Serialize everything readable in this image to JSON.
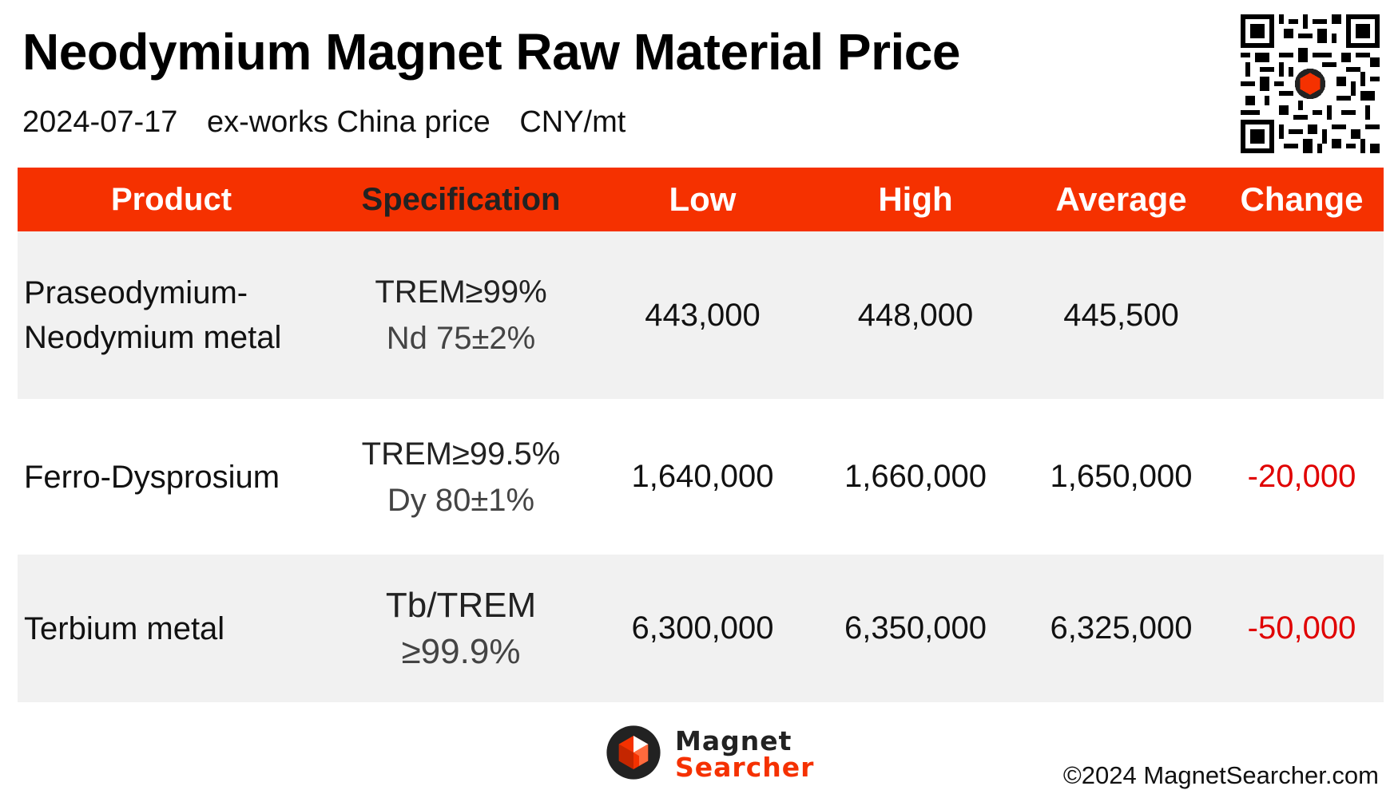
{
  "header": {
    "title": "Neodymium Magnet Raw Material Price",
    "date": "2024-07-17",
    "basis": "ex-works China price",
    "unit": "CNY/mt"
  },
  "table": {
    "columns": [
      "Product",
      "Specification",
      "Low",
      "High",
      "Average",
      "Change"
    ],
    "rows": [
      {
        "product": [
          "Praseodymium-",
          "Neodymium metal"
        ],
        "spec": [
          "TREM≥99%",
          "Nd 75±2%"
        ],
        "low": "443,000",
        "high": "448,000",
        "average": "445,500",
        "change": ""
      },
      {
        "product": [
          "Ferro-Dysprosium"
        ],
        "spec": [
          "TREM≥99.5%",
          "Dy 80±1%"
        ],
        "low": "1,640,000",
        "high": "1,660,000",
        "average": "1,650,000",
        "change": "-20,000"
      },
      {
        "product": [
          "Terbium metal"
        ],
        "spec": [
          "Tb/TREM",
          "≥99.9%"
        ],
        "low": "6,300,000",
        "high": "6,350,000",
        "average": "6,325,000",
        "change": "-50,000"
      }
    ]
  },
  "footer": {
    "logo_line1": "Magnet",
    "logo_line2": "Searcher",
    "copyright": "©2024 MagnetSearcher.com"
  },
  "colors": {
    "accent": "#f53100",
    "negative": "#e00000",
    "row_shade": "#f1f1f1"
  }
}
